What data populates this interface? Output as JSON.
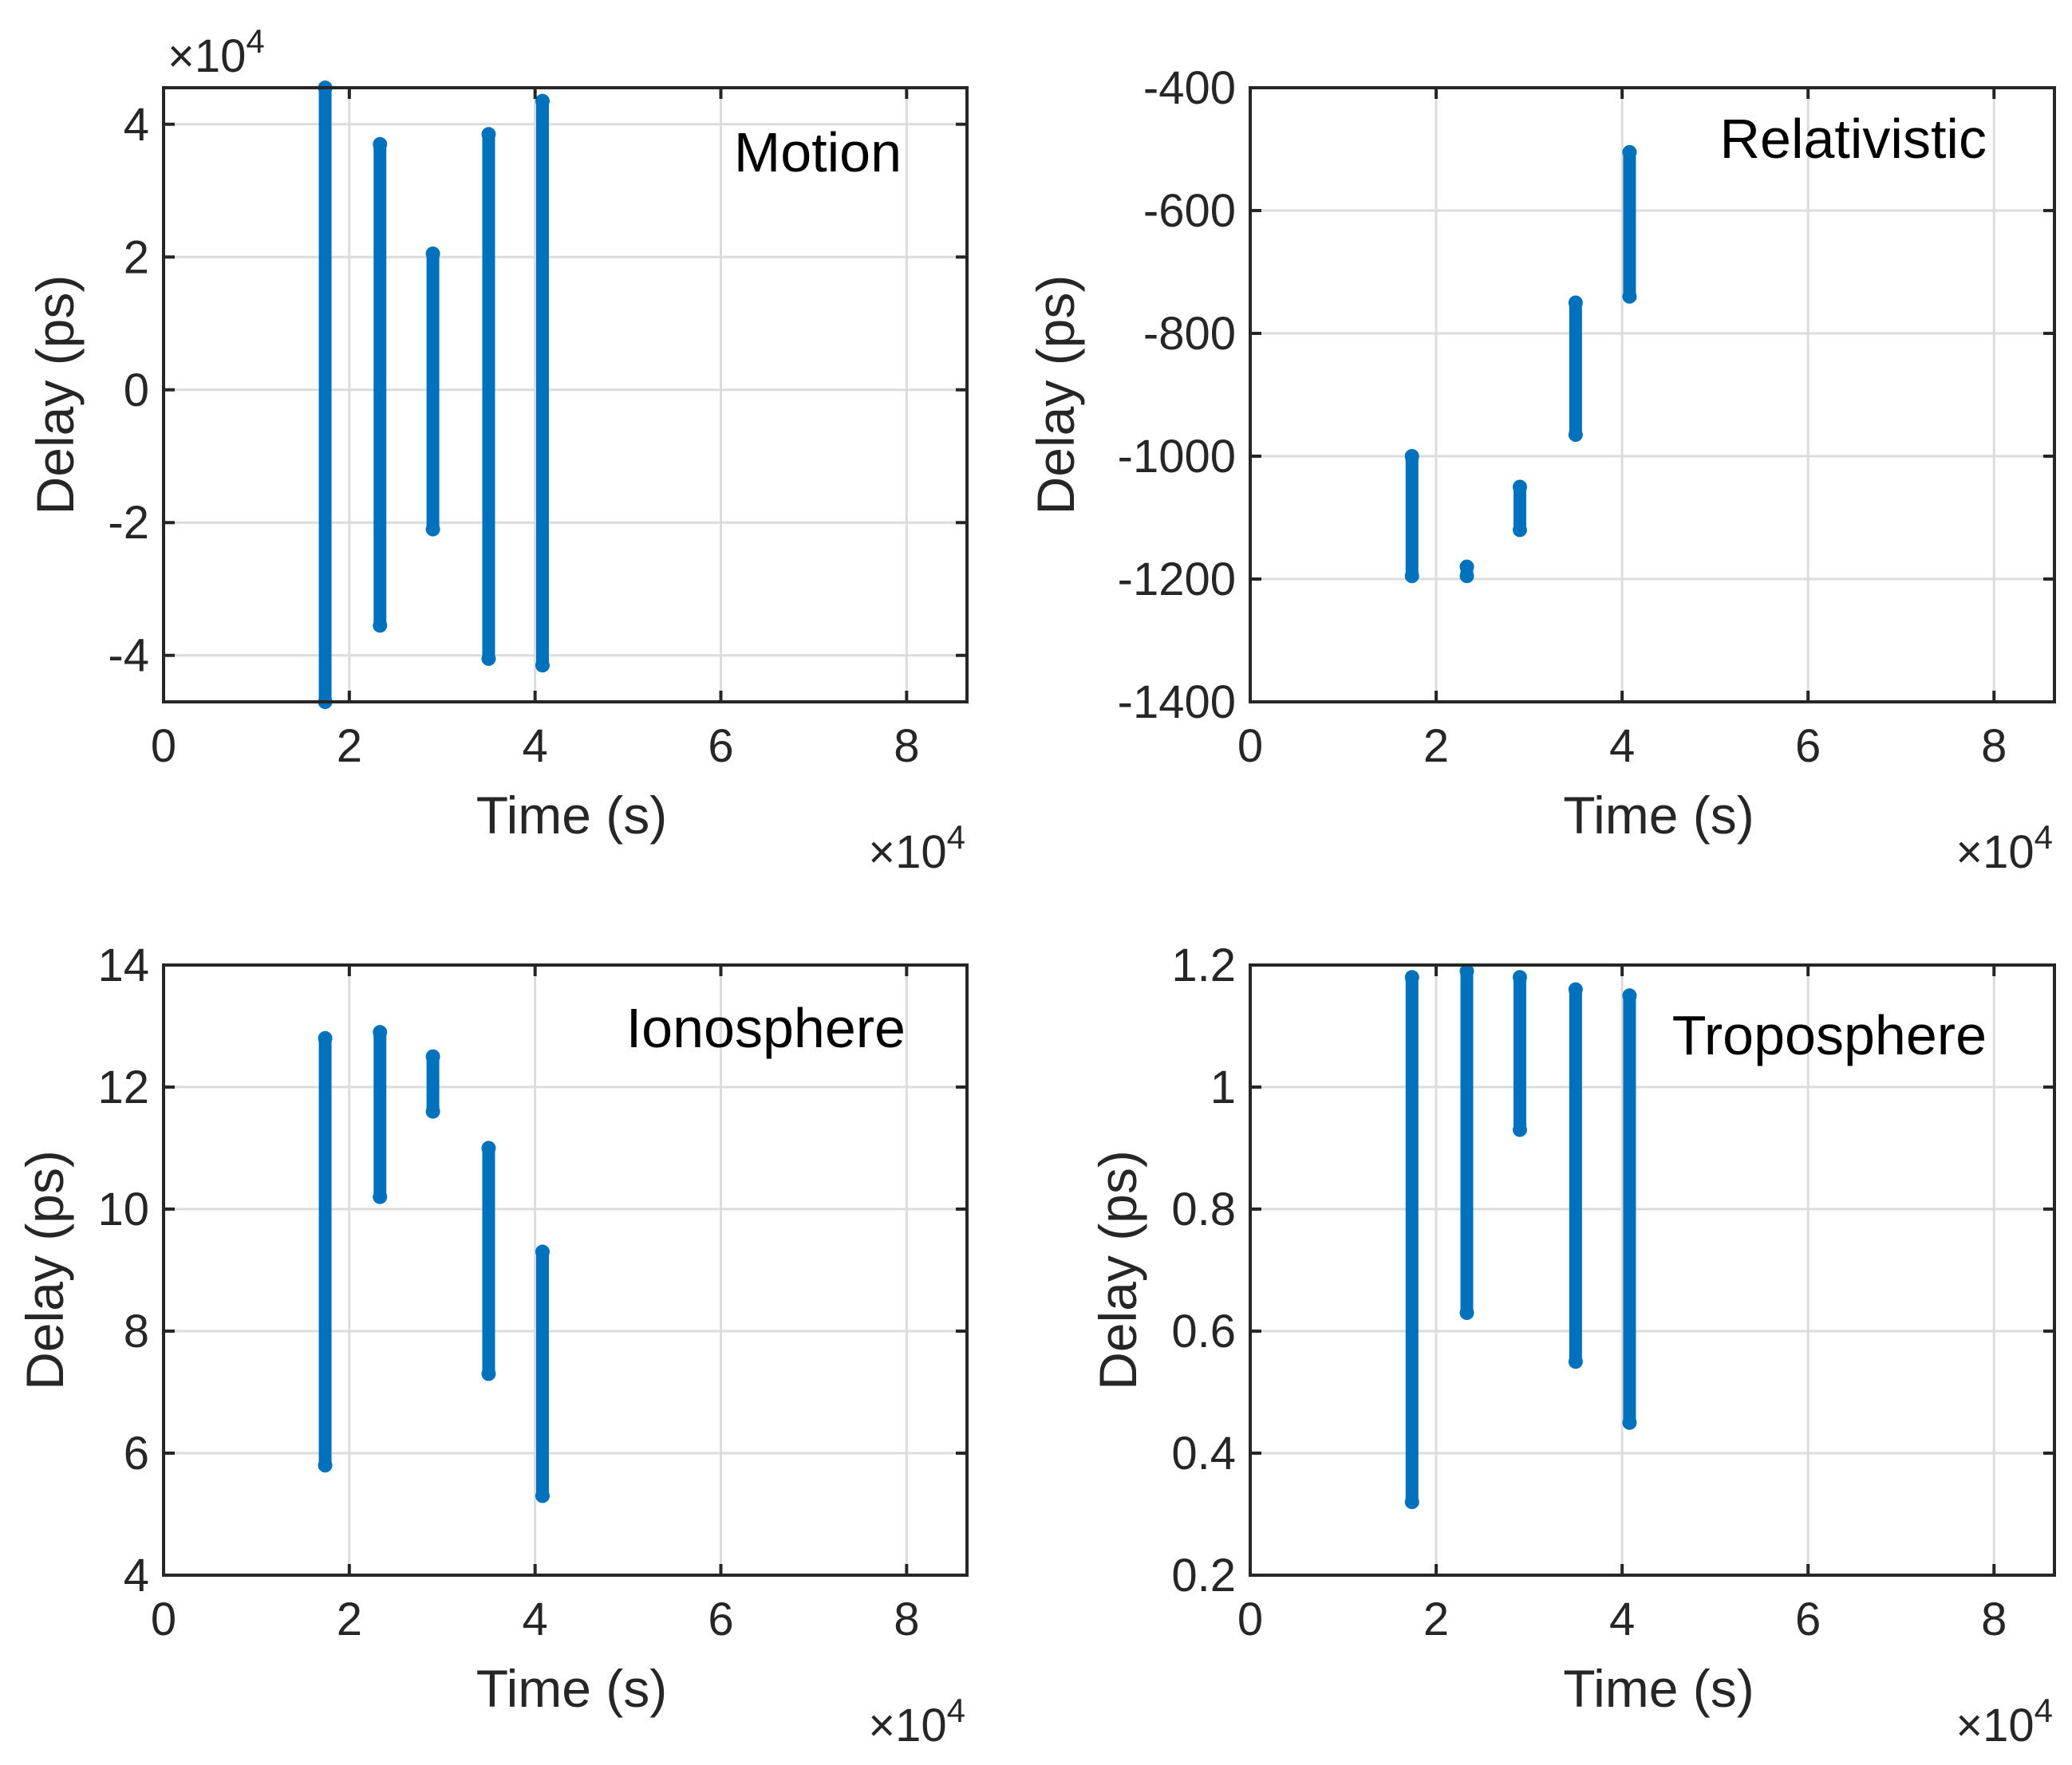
{
  "chart_data": [
    {
      "type": "scatter",
      "panel": "top-left",
      "annotation": "Motion",
      "xlabel": "Time (s)",
      "ylabel": "Delay (ps)",
      "x_multiplier": "×10^4",
      "y_multiplier": "×10^4",
      "xlim": [
        0,
        8.65
      ],
      "ylim": [
        -4.7,
        4.55
      ],
      "xticks": [
        "0",
        "2",
        "4",
        "6",
        "8"
      ],
      "xtick_values": [
        0,
        2,
        4,
        6,
        8
      ],
      "yticks": [
        "-4",
        "-2",
        "0",
        "2",
        "4"
      ],
      "ytick_values": [
        -4,
        -2,
        0,
        2,
        4
      ],
      "grid": true,
      "series": [
        {
          "name": "Delay",
          "color": "#0072bd",
          "segments": [
            {
              "x": 1.74,
              "ymin": -4.7,
              "ymax": 4.55
            },
            {
              "x": 2.33,
              "ymin": -3.55,
              "ymax": 3.7
            },
            {
              "x": 2.9,
              "ymin": -2.1,
              "ymax": 2.05
            },
            {
              "x": 3.5,
              "ymin": -4.05,
              "ymax": 3.85
            },
            {
              "x": 4.08,
              "ymin": -4.15,
              "ymax": 4.35
            }
          ]
        }
      ]
    },
    {
      "type": "scatter",
      "panel": "top-right",
      "annotation": "Relativistic",
      "xlabel": "Time (s)",
      "ylabel": "Delay (ps)",
      "x_multiplier": "×10^4",
      "xlim": [
        0,
        8.65
      ],
      "ylim": [
        -1400,
        -400
      ],
      "xticks": [
        "0",
        "2",
        "4",
        "6",
        "8"
      ],
      "xtick_values": [
        0,
        2,
        4,
        6,
        8
      ],
      "yticks": [
        "-1400",
        "-1200",
        "-1000",
        "-800",
        "-600",
        "-400"
      ],
      "ytick_values": [
        -1400,
        -1200,
        -1000,
        -800,
        -600,
        -400
      ],
      "grid": true,
      "series": [
        {
          "name": "Delay",
          "color": "#0072bd",
          "segments": [
            {
              "x": 1.74,
              "ymin": -1195,
              "ymax": -1000
            },
            {
              "x": 2.33,
              "ymin": -1195,
              "ymax": -1180
            },
            {
              "x": 2.9,
              "ymin": -1120,
              "ymax": -1050
            },
            {
              "x": 3.5,
              "ymin": -965,
              "ymax": -750
            },
            {
              "x": 4.08,
              "ymin": -740,
              "ymax": -505
            }
          ]
        }
      ]
    },
    {
      "type": "scatter",
      "panel": "bottom-left",
      "annotation": "Ionosphere",
      "xlabel": "Time (s)",
      "ylabel": "Delay (ps)",
      "x_multiplier": "×10^4",
      "xlim": [
        0,
        8.65
      ],
      "ylim": [
        4,
        14
      ],
      "xticks": [
        "0",
        "2",
        "4",
        "6",
        "8"
      ],
      "xtick_values": [
        0,
        2,
        4,
        6,
        8
      ],
      "yticks": [
        "4",
        "6",
        "8",
        "10",
        "12",
        "14"
      ],
      "ytick_values": [
        4,
        6,
        8,
        10,
        12,
        14
      ],
      "grid": true,
      "series": [
        {
          "name": "Delay",
          "color": "#0072bd",
          "segments": [
            {
              "x": 1.74,
              "ymin": 5.8,
              "ymax": 12.8
            },
            {
              "x": 2.33,
              "ymin": 10.2,
              "ymax": 12.9
            },
            {
              "x": 2.9,
              "ymin": 11.6,
              "ymax": 12.5
            },
            {
              "x": 3.5,
              "ymin": 7.3,
              "ymax": 11.0
            },
            {
              "x": 4.08,
              "ymin": 5.3,
              "ymax": 9.3
            }
          ]
        }
      ]
    },
    {
      "type": "scatter",
      "panel": "bottom-right",
      "annotation": "Troposphere",
      "xlabel": "Time (s)",
      "ylabel": "Delay (ps)",
      "x_multiplier": "×10^4",
      "xlim": [
        0,
        8.65
      ],
      "ylim": [
        0.2,
        1.2
      ],
      "xticks": [
        "0",
        "2",
        "4",
        "6",
        "8"
      ],
      "xtick_values": [
        0,
        2,
        4,
        6,
        8
      ],
      "yticks": [
        "0.2",
        "0.4",
        "0.6",
        "0.8",
        "1",
        "1.2"
      ],
      "ytick_values": [
        0.2,
        0.4,
        0.6,
        0.8,
        1.0,
        1.2
      ],
      "grid": true,
      "series": [
        {
          "name": "Delay",
          "color": "#0072bd",
          "segments": [
            {
              "x": 1.74,
              "ymin": 0.32,
              "ymax": 1.18
            },
            {
              "x": 2.33,
              "ymin": 0.63,
              "ymax": 1.19
            },
            {
              "x": 2.9,
              "ymin": 0.93,
              "ymax": 1.18
            },
            {
              "x": 3.5,
              "ymin": 0.55,
              "ymax": 1.16
            },
            {
              "x": 4.08,
              "ymin": 0.45,
              "ymax": 1.15
            }
          ]
        }
      ]
    }
  ]
}
